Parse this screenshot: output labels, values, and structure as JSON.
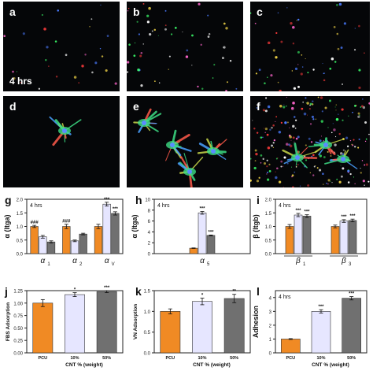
{
  "micrographs": [
    {
      "label": "a",
      "type": "sparse",
      "time_label": "4 hrs"
    },
    {
      "label": "b",
      "type": "sparse"
    },
    {
      "label": "c",
      "type": "sparse"
    },
    {
      "label": "d",
      "type": "spread"
    },
    {
      "label": "e",
      "type": "spread"
    },
    {
      "label": "f",
      "type": "spread"
    }
  ],
  "colors": {
    "pcu": "#f08a24",
    "cnt10": "#e6e6ff",
    "cnt50": "#707070",
    "edge": "#333333"
  },
  "chart_data": [
    {
      "panel": "g",
      "type": "bar",
      "inset": "4 hrs",
      "ylabel": "α (Itga)",
      "ylim": [
        0,
        2.0
      ],
      "yticks": [
        "0.0",
        "0.5",
        "1.0",
        "1.5",
        "2.0"
      ],
      "groups": [
        {
          "label": "α",
          "sub": "1"
        },
        {
          "label": "α",
          "sub": "2"
        },
        {
          "label": "α",
          "sub": "V"
        }
      ],
      "series": [
        {
          "values": [
            1.0,
            1.0,
            1.0
          ],
          "errors": [
            0.04,
            0.08,
            0.08
          ]
        },
        {
          "values": [
            0.62,
            0.47,
            1.82
          ],
          "errors": [
            0.05,
            0.03,
            0.07
          ]
        },
        {
          "values": [
            0.43,
            0.72,
            1.48
          ],
          "errors": [
            0.04,
            0.03,
            0.06
          ]
        }
      ],
      "annotations": [
        "###",
        "###",
        "***",
        "***"
      ]
    },
    {
      "panel": "h",
      "type": "bar",
      "inset": "4 hrs",
      "ylabel": "α (Itga)",
      "ylim": [
        0,
        10
      ],
      "yticks": [
        "0",
        "2",
        "4",
        "6",
        "8",
        "10"
      ],
      "groups": [
        {
          "label": "α",
          "sub": "5"
        }
      ],
      "series": [
        {
          "values": [
            1.0
          ],
          "errors": [
            0.05
          ]
        },
        {
          "values": [
            7.5
          ],
          "errors": [
            0.25
          ]
        },
        {
          "values": [
            3.35
          ],
          "errors": [
            0.08
          ]
        }
      ],
      "annotations": [
        "***",
        "***"
      ]
    },
    {
      "panel": "i",
      "type": "bar",
      "inset": "4 hrs",
      "ylabel": "β (Itgb)",
      "ylim": [
        0,
        2.0
      ],
      "yticks": [
        "0.0",
        "0.5",
        "1.0",
        "1.5",
        "2.0"
      ],
      "groups": [
        {
          "label": "β",
          "sub": "1"
        },
        {
          "label": "β",
          "sub": "3"
        }
      ],
      "series": [
        {
          "values": [
            1.0,
            1.0
          ],
          "errors": [
            0.07,
            0.05
          ]
        },
        {
          "values": [
            1.42,
            1.2
          ],
          "errors": [
            0.06,
            0.05
          ]
        },
        {
          "values": [
            1.38,
            1.22
          ],
          "errors": [
            0.05,
            0.05
          ]
        }
      ],
      "annotations": [
        "***",
        "***",
        "***",
        "***"
      ]
    },
    {
      "panel": "j",
      "type": "bar",
      "ylabel": "FBS Adsorption",
      "ylim": [
        0,
        1.25
      ],
      "yticks": [
        "0.00",
        "0.25",
        "0.50",
        "0.75",
        "1.00",
        "1.25"
      ],
      "categories": [
        "PCU",
        "10%",
        "50%"
      ],
      "xlabel": "CNT % (weight)",
      "values": [
        1.0,
        1.17,
        1.23
      ],
      "errors": [
        0.07,
        0.04,
        0.02
      ],
      "annotations": [
        "*",
        "***"
      ]
    },
    {
      "panel": "k",
      "type": "bar",
      "ylabel": "VN Adsorption",
      "ylim": [
        0,
        1.5
      ],
      "yticks": [
        "0.0",
        "0.5",
        "1.0",
        "1.5"
      ],
      "categories": [
        "PCU",
        "10%",
        "50%"
      ],
      "xlabel": "CNT % (weight)",
      "values": [
        1.0,
        1.24,
        1.31
      ],
      "errors": [
        0.06,
        0.08,
        0.1
      ],
      "annotations": [
        "*",
        "**"
      ]
    },
    {
      "panel": "l",
      "type": "bar",
      "inset": "4 hrs",
      "ylabel": "Adhesion",
      "ylim": [
        0,
        4.5
      ],
      "yticks": [
        "0",
        "1",
        "2",
        "3",
        "4"
      ],
      "categories": [
        "PCU",
        "10%",
        "50%"
      ],
      "xlabel": "CNT % (weight)",
      "values": [
        1.0,
        3.0,
        3.95
      ],
      "errors": [
        0.03,
        0.12,
        0.12
      ],
      "annotations": [
        "***",
        "***"
      ]
    }
  ]
}
